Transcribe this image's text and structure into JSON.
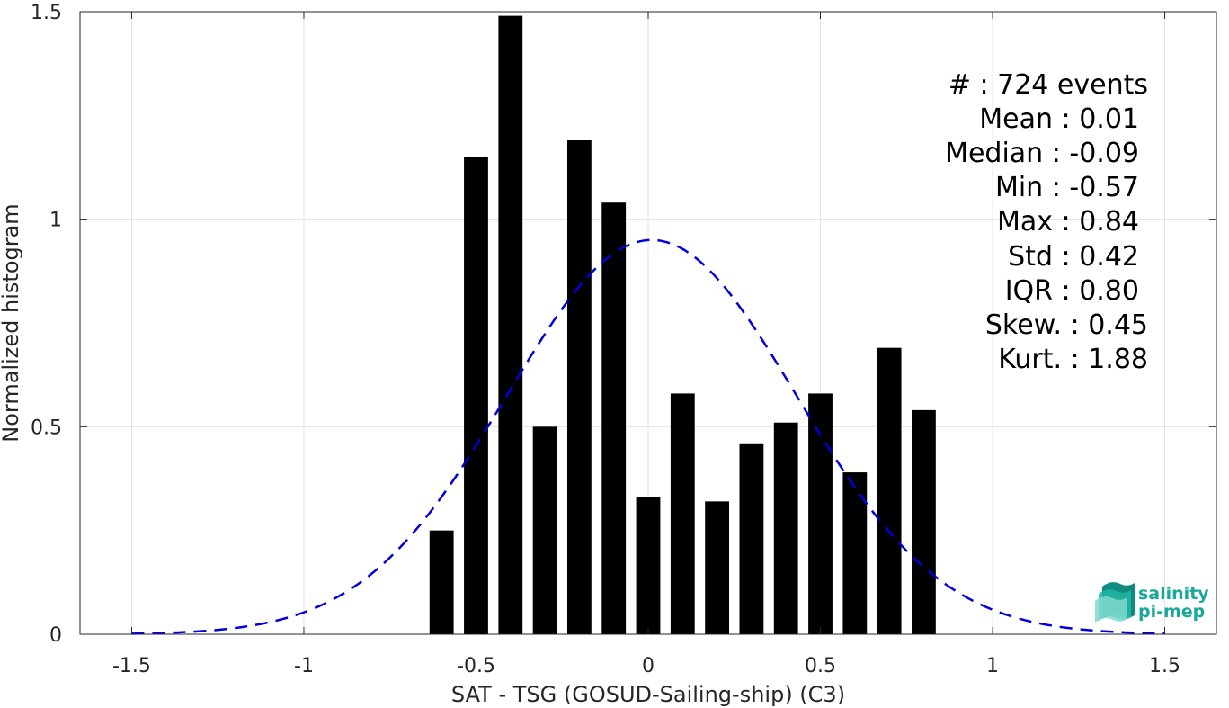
{
  "chart_data": {
    "type": "bar",
    "xlabel": "SAT - TSG (GOSUD-Sailing-ship) (C3)",
    "ylabel": "Normalized histogram",
    "xlim": [
      -1.65,
      1.65
    ],
    "ylim": [
      0,
      1.5
    ],
    "x_ticks": [
      "-1.5",
      "-1",
      "-0.5",
      "0",
      "0.5",
      "1",
      "1.5"
    ],
    "x_tick_values": [
      -1.5,
      -1,
      -0.5,
      0,
      0.5,
      1,
      1.5
    ],
    "y_ticks": [
      "0",
      "0.5",
      "1",
      "1.5"
    ],
    "y_tick_values": [
      0,
      0.5,
      1,
      1.5
    ],
    "grid": true,
    "bar_color": "#000000",
    "bar_width": 0.07,
    "bars": {
      "x": [
        -0.6,
        -0.5,
        -0.4,
        -0.3,
        -0.2,
        -0.1,
        0.0,
        0.1,
        0.2,
        0.3,
        0.4,
        0.5,
        0.6,
        0.7,
        0.8
      ],
      "values": [
        0.25,
        1.15,
        1.49,
        0.5,
        1.19,
        1.04,
        0.33,
        0.58,
        0.32,
        0.46,
        0.51,
        0.58,
        0.39,
        0.69,
        0.54
      ]
    },
    "fit_curve": {
      "style": "dashed",
      "color": "#0000dd",
      "mean": 0.01,
      "std": 0.42,
      "x_range": [
        -1.5,
        1.5
      ]
    }
  },
  "stats": [
    {
      "label": "#  : 724 events"
    },
    {
      "label": "Mean : 0.01"
    },
    {
      "label": "Median : -0.09"
    },
    {
      "label": "Min : -0.57"
    },
    {
      "label": "Max : 0.84"
    },
    {
      "label": "Std : 0.42"
    },
    {
      "label": "IQR : 0.80"
    },
    {
      "label": "Skew. : 0.45"
    },
    {
      "label": "Kurt. : 1.88"
    }
  ],
  "logo": {
    "line1": "salinity",
    "line2": "pi-mep",
    "color": "#1aa89a"
  }
}
